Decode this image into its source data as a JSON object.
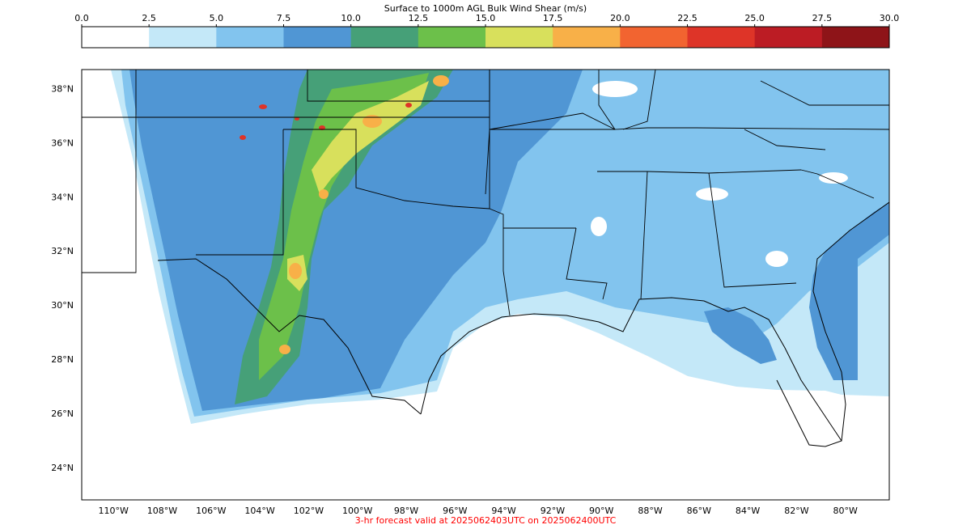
{
  "colorbar": {
    "title": "Surface to 1000m AGL Bulk Wind Shear (m/s)",
    "ticks": [
      "0.0",
      "2.5",
      "5.0",
      "7.5",
      "10.0",
      "12.5",
      "15.0",
      "17.5",
      "20.0",
      "22.5",
      "25.0",
      "27.5",
      "30.0"
    ],
    "colors": [
      "#ffffff",
      "#c4e8f8",
      "#82c4ee",
      "#5096d4",
      "#46a078",
      "#6cc04a",
      "#d8e05c",
      "#f8b048",
      "#f26430",
      "#de3428",
      "#bc1c24",
      "#8e1418"
    ]
  },
  "map": {
    "lon_labels": [
      "110°W",
      "108°W",
      "106°W",
      "104°W",
      "102°W",
      "100°W",
      "98°W",
      "96°W",
      "94°W",
      "92°W",
      "90°W",
      "88°W",
      "86°W",
      "84°W",
      "82°W",
      "80°W"
    ],
    "lat_labels": [
      "38°N",
      "36°N",
      "34°N",
      "32°N",
      "30°N",
      "28°N",
      "26°N",
      "24°N"
    ],
    "extent": {
      "lon_min": -111.3,
      "lon_max": -78.2,
      "lat_min": 22.8,
      "lat_max": 38.7
    }
  },
  "footer": {
    "caption": "3-hr forecast valid at 2025062403UTC on 2025062400UTC",
    "caption_color": "#ff0000"
  }
}
